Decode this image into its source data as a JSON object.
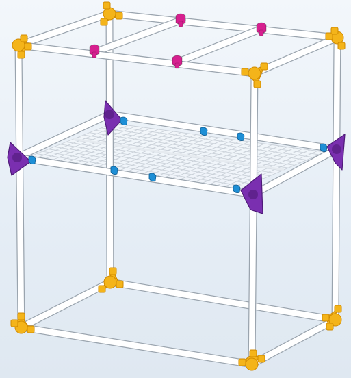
{
  "scene": {
    "background": "#eaf1f8",
    "colors": {
      "pipe_fill": "#ffffff",
      "pipe_edge": "#9aa4ae",
      "corner_connector": "#f4b41a",
      "corner_connector_shade": "#d08a00",
      "mid_connector": "#7a2fb0",
      "mid_connector_shade": "#4e1a78",
      "top_clip": "#d6208f",
      "shelf_clip": "#1e8fd6",
      "wire_grid": "#c9d0d8"
    },
    "parts": {
      "corner_connectors": 8,
      "mid_connectors": 4,
      "top_clips": 4,
      "shelf_clips": 8
    }
  }
}
